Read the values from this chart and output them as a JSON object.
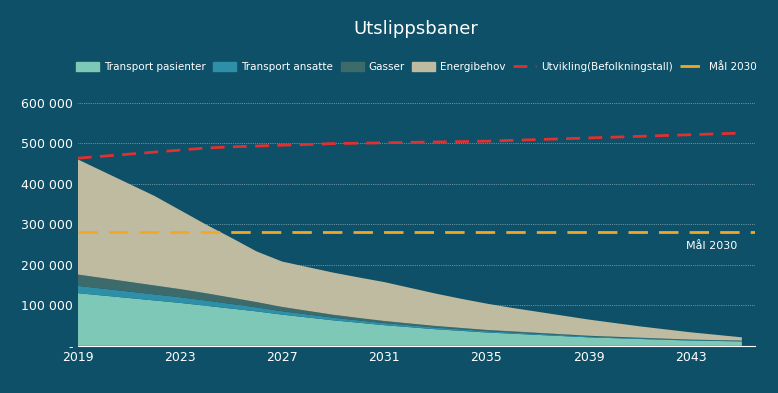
{
  "title": "Utslippsbaner",
  "background_color": "#0d5068",
  "title_color": "white",
  "years": [
    2019,
    2020,
    2021,
    2022,
    2023,
    2024,
    2025,
    2026,
    2027,
    2028,
    2029,
    2030,
    2031,
    2032,
    2033,
    2034,
    2035,
    2036,
    2037,
    2038,
    2039,
    2040,
    2041,
    2042,
    2043,
    2044,
    2045
  ],
  "transport_pasienter": [
    130000,
    124000,
    118000,
    112000,
    106000,
    99000,
    92000,
    85000,
    77000,
    70000,
    63000,
    57000,
    51000,
    46000,
    41000,
    37000,
    33000,
    30000,
    27000,
    24000,
    21000,
    19000,
    17000,
    15000,
    13000,
    12000,
    11000
  ],
  "transport_ansatte": [
    18000,
    17000,
    16000,
    15000,
    14000,
    13000,
    11500,
    10000,
    8500,
    7500,
    6500,
    5800,
    5200,
    4700,
    4200,
    3800,
    3400,
    3100,
    2800,
    2500,
    2200,
    2000,
    1800,
    1600,
    1400,
    1300,
    1200
  ],
  "gasser": [
    28000,
    26000,
    24000,
    22000,
    20000,
    18000,
    15500,
    13000,
    10500,
    8800,
    7200,
    6000,
    5100,
    4500,
    3900,
    3400,
    2900,
    2600,
    2300,
    2000,
    1700,
    1500,
    1300,
    1100,
    1000,
    900,
    800
  ],
  "energibehov": [
    284000,
    263000,
    242000,
    221000,
    195000,
    170000,
    148000,
    125000,
    112000,
    108000,
    104000,
    100000,
    96000,
    88000,
    80000,
    72000,
    65000,
    58000,
    52000,
    46000,
    40000,
    34000,
    28000,
    23000,
    18000,
    13000,
    8000
  ],
  "utvikling_befolkning": [
    463000,
    468000,
    473000,
    478000,
    483000,
    488000,
    491000,
    493000,
    495000,
    497000,
    499000,
    500000,
    501000,
    502000,
    503000,
    504000,
    505000,
    507000,
    509000,
    511000,
    513000,
    515000,
    517000,
    519000,
    521000,
    523000,
    525000
  ],
  "mal_2030": 280000,
  "color_transport_pasienter": "#7ec8b8",
  "color_transport_ansatte": "#2e8fa8",
  "color_gasser": "#3d6b6b",
  "color_energibehov": "#bfbba0",
  "color_utvikling": "#e03030",
  "color_mal_2030": "#f5a623",
  "legend_labels": [
    "Transport pasienter",
    "Transport ansatte",
    "Gasser",
    "Energibehov",
    "Utvikling(Befolkningstall)",
    "Mål 2030"
  ],
  "yticks": [
    0,
    100000,
    200000,
    300000,
    400000,
    500000,
    600000
  ],
  "ytick_labels": [
    "-",
    "100 000",
    "200 000",
    "300 000",
    "400 000",
    "500 000",
    "600 000"
  ],
  "xticks": [
    2019,
    2023,
    2027,
    2031,
    2035,
    2039,
    2043
  ],
  "ylim": [
    0,
    640000
  ],
  "mal_2030_label": "Mål 2030"
}
